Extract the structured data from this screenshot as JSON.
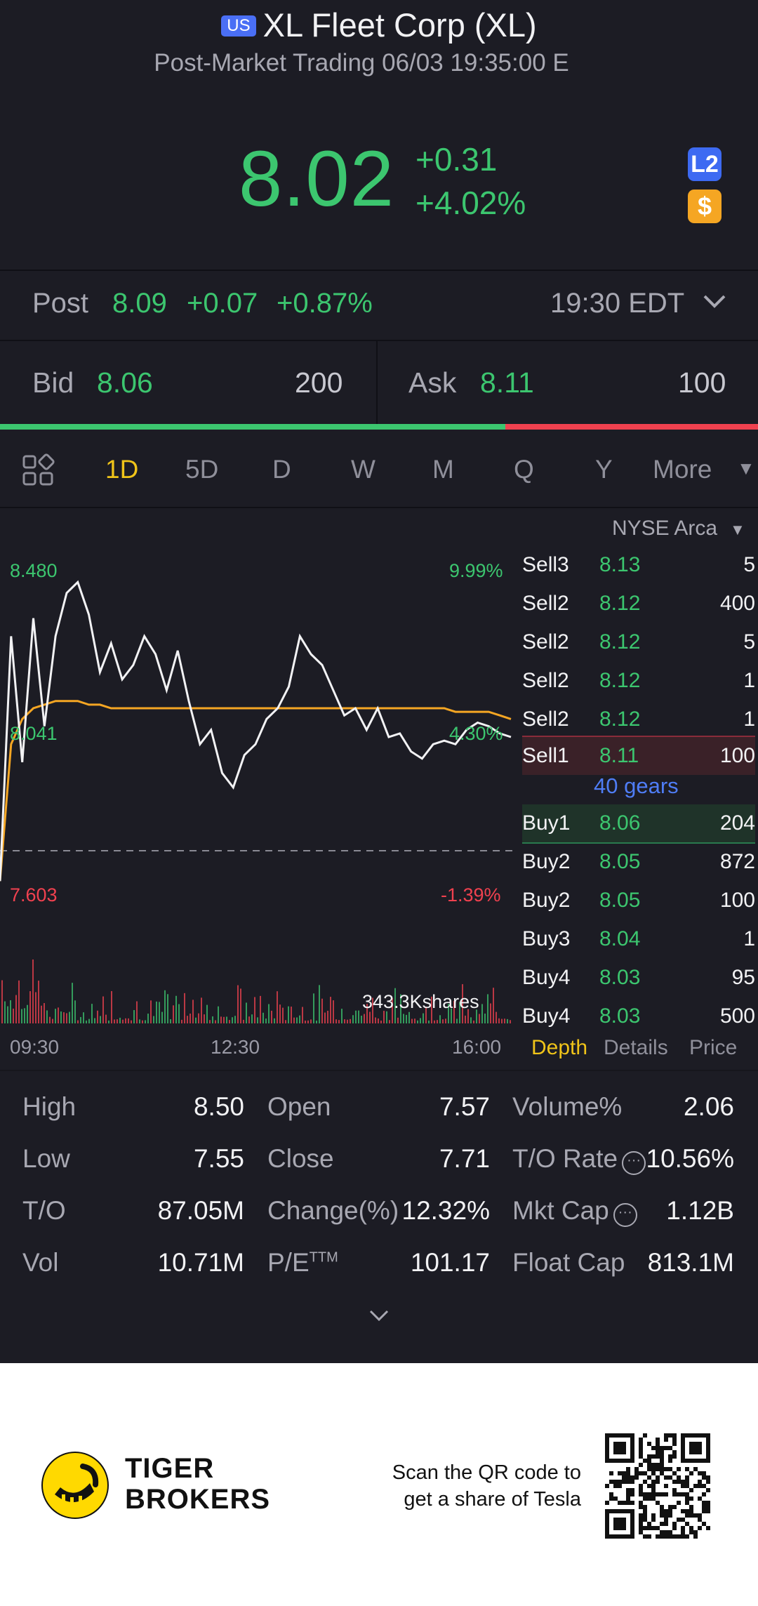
{
  "header": {
    "market_badge": "US",
    "title": "XL Fleet Corp (XL)",
    "subtitle": "Post-Market Trading 06/03 19:35:00 E",
    "price": "8.02",
    "change": "+0.31",
    "change_pct": "+4.02%",
    "l2_label": "L2",
    "dollar_label": "$"
  },
  "post": {
    "label": "Post",
    "price": "8.09",
    "change": "+0.07",
    "change_pct": "+0.87%",
    "time": "19:30 EDT"
  },
  "bid_ask": {
    "bid_label": "Bid",
    "bid": "8.06",
    "bid_size": "200",
    "ask_label": "Ask",
    "ask": "8.11",
    "ask_size": "100",
    "bid_ratio": 0.667
  },
  "tabs": [
    {
      "label": "1D",
      "active": true
    },
    {
      "label": "5D"
    },
    {
      "label": "D"
    },
    {
      "label": "W"
    },
    {
      "label": "M"
    },
    {
      "label": "Q"
    },
    {
      "label": "Y"
    },
    {
      "label": "More"
    }
  ],
  "chart_labels": {
    "high": "8.480",
    "high_pct": "9.99%",
    "mid": "8.041",
    "mid_pct": "4.30%",
    "low": "7.603",
    "low_pct": "-1.39%",
    "volume": "343.3Kshares",
    "t_start": "09:30",
    "t_mid": "12:30",
    "t_end": "16:00"
  },
  "chart_data": {
    "type": "line",
    "x_ticks": [
      "09:30",
      "12:30",
      "16:00"
    ],
    "ylim": [
      7.603,
      8.48
    ],
    "prev_close": 7.71,
    "series": [
      {
        "values": [
          7.62,
          8.3,
          7.95,
          8.35,
          8.05,
          8.3,
          8.42,
          8.45,
          8.36,
          8.2,
          8.28,
          8.18,
          8.22,
          8.3,
          8.25,
          8.15,
          8.26,
          8.12,
          8.0,
          8.04,
          7.92,
          7.88,
          7.97,
          8.0,
          8.07,
          8.1,
          8.16,
          8.3,
          8.25,
          8.22,
          8.15,
          8.08,
          8.1,
          8.04,
          8.1,
          8.02,
          8.03,
          7.98,
          7.96,
          8.0,
          8.01,
          8.0,
          8.04,
          8.06,
          8.05,
          8.03,
          8.02
        ]
      },
      {
        "values": [
          7.62,
          8.0,
          8.07,
          8.1,
          8.11,
          8.12,
          8.12,
          8.12,
          8.11,
          8.11,
          8.1,
          8.1,
          8.1,
          8.1,
          8.1,
          8.1,
          8.1,
          8.1,
          8.1,
          8.1,
          8.1,
          8.1,
          8.1,
          8.1,
          8.1,
          8.1,
          8.1,
          8.1,
          8.1,
          8.1,
          8.1,
          8.1,
          8.1,
          8.1,
          8.1,
          8.1,
          8.1,
          8.1,
          8.1,
          8.1,
          8.1,
          8.09,
          8.09,
          8.09,
          8.09,
          8.08,
          8.07
        ]
      }
    ]
  },
  "exchange": "NYSE Arca",
  "order_book": {
    "sells": [
      {
        "label": "Sell3",
        "price": "8.13",
        "size": "5"
      },
      {
        "label": "Sell2",
        "price": "8.12",
        "size": "400"
      },
      {
        "label": "Sell2",
        "price": "8.12",
        "size": "5"
      },
      {
        "label": "Sell2",
        "price": "8.12",
        "size": "1"
      },
      {
        "label": "Sell2",
        "price": "8.12",
        "size": "1"
      },
      {
        "label": "Sell1",
        "price": "8.11",
        "size": "100"
      }
    ],
    "gears": "40 gears",
    "buys": [
      {
        "label": "Buy1",
        "price": "8.06",
        "size": "204"
      },
      {
        "label": "Buy2",
        "price": "8.05",
        "size": "872"
      },
      {
        "label": "Buy2",
        "price": "8.05",
        "size": "100"
      },
      {
        "label": "Buy3",
        "price": "8.04",
        "size": "1"
      },
      {
        "label": "Buy4",
        "price": "8.03",
        "size": "95"
      },
      {
        "label": "Buy4",
        "price": "8.03",
        "size": "500"
      }
    ],
    "tabs": [
      "Depth",
      "Details",
      "Price"
    ]
  },
  "stats": {
    "high_label": "High",
    "high": "8.50",
    "low_label": "Low",
    "low": "7.55",
    "to_label": "T/O",
    "to": "87.05M",
    "vol_label": "Vol",
    "vol": "10.71M",
    "open_label": "Open",
    "open": "7.57",
    "close_label": "Close",
    "close": "7.71",
    "change_label": "Change(%)",
    "change": "12.32%",
    "pe_label": "P/E",
    "pe_sup": "TTM",
    "pe": "101.17",
    "volume_pct_label": "Volume%",
    "volume_pct": "2.06",
    "to_rate_label": "T/O Rate",
    "to_rate": "10.56%",
    "mkt_cap_label": "Mkt Cap",
    "mkt_cap": "1.12B",
    "float_cap_label": "Float Cap",
    "float_cap": "813.1M"
  },
  "footer": {
    "brand_line1": "TIGER",
    "brand_line2": "BROKERS",
    "scan_line1": "Scan the QR code to",
    "scan_line2": "get a share of Tesla"
  },
  "colors": {
    "background": "#1c1c24",
    "up": "#3cc66f",
    "down": "#f0414f",
    "accent": "#f0c419",
    "link": "#4f7df6",
    "avg_line": "#f5a623"
  }
}
